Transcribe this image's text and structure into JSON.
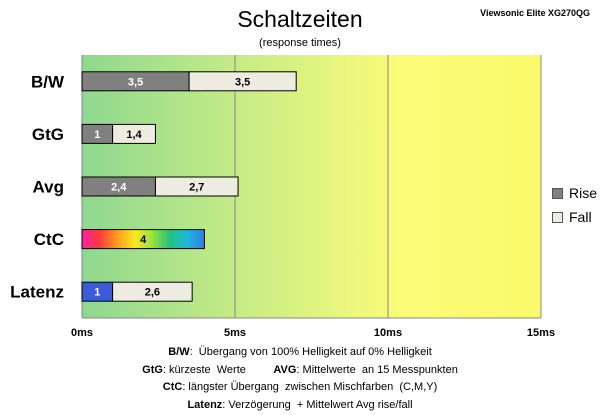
{
  "title": "Schaltzeiten",
  "subtitle": "(response times)",
  "model": "Viewsonic Elite XG270QG",
  "legend": [
    {
      "label": "Rise",
      "color": "#808080"
    },
    {
      "label": "Fall",
      "color": "#eeece1"
    }
  ],
  "notes": [
    {
      "parts": [
        {
          "b": "B/W"
        },
        {
          "t": ":  Übergang von 100% Helligkeit auf 0% Helligkeit"
        }
      ]
    },
    {
      "parts": [
        {
          "b": "GtG"
        },
        {
          "t": ": kürzeste  Werte         "
        },
        {
          "b": "AVG"
        },
        {
          "t": ": Mittelwerte  an 15 Messpunkten"
        }
      ]
    },
    {
      "parts": [
        {
          "b": "CtC"
        },
        {
          "t": ": längster Übergang  zwischen Mischfarben  (C,M,Y)"
        }
      ]
    },
    {
      "parts": [
        {
          "b": "Latenz"
        },
        {
          "t": ": Verzögerung  + Mittelwert Avg rise/fall"
        }
      ]
    }
  ],
  "chart_data": {
    "type": "bar",
    "orientation": "horizontal",
    "stacked": true,
    "categories": [
      "B/W",
      "GtG",
      "Avg",
      "CtC",
      "Latenz"
    ],
    "series": [
      {
        "name": "Rise",
        "color": "#808080",
        "values": [
          3.5,
          1,
          2.4,
          4,
          1
        ],
        "labels": [
          "3,5",
          "1",
          "2,4",
          "4",
          "1"
        ]
      },
      {
        "name": "Fall",
        "color": "#eeece1",
        "values": [
          3.5,
          1.4,
          2.7,
          null,
          2.6
        ],
        "labels": [
          "3,5",
          "1,4",
          "2,7",
          "",
          "2,6"
        ]
      }
    ],
    "special_fills": {
      "CtC": "rainbow",
      "Latenz": "#3b5bdb"
    },
    "x_ticks": [
      0,
      5,
      10,
      15
    ],
    "x_tick_labels": [
      "0ms",
      "5ms",
      "10ms",
      "15ms"
    ],
    "xlim": [
      0,
      15
    ],
    "background_gradient": [
      "#8ed88f",
      "#c8ec86",
      "#fcfc78",
      "#fafa6a"
    ],
    "grid": true,
    "legend_position": "right"
  }
}
